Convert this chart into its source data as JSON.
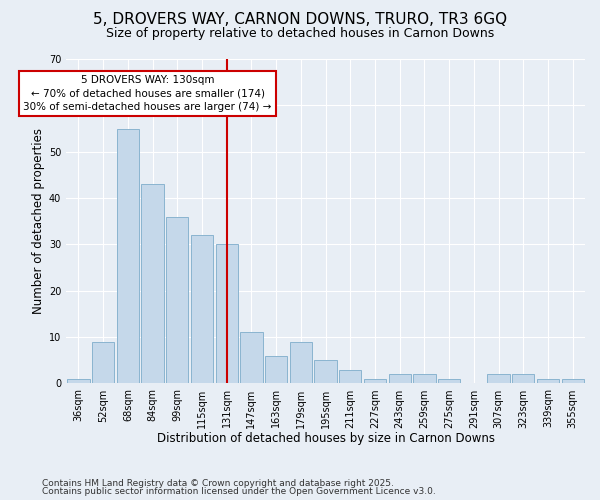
{
  "title1": "5, DROVERS WAY, CARNON DOWNS, TRURO, TR3 6GQ",
  "title2": "Size of property relative to detached houses in Carnon Downs",
  "xlabel": "Distribution of detached houses by size in Carnon Downs",
  "ylabel": "Number of detached properties",
  "categories": [
    "36sqm",
    "52sqm",
    "68sqm",
    "84sqm",
    "99sqm",
    "115sqm",
    "131sqm",
    "147sqm",
    "163sqm",
    "179sqm",
    "195sqm",
    "211sqm",
    "227sqm",
    "243sqm",
    "259sqm",
    "275sqm",
    "291sqm",
    "307sqm",
    "323sqm",
    "339sqm",
    "355sqm"
  ],
  "values": [
    1,
    9,
    55,
    43,
    36,
    32,
    30,
    11,
    6,
    9,
    5,
    3,
    1,
    2,
    2,
    1,
    0,
    2,
    2,
    1,
    1
  ],
  "bar_color": "#c5d8ea",
  "bar_edge_color": "#8ab4d0",
  "vline_index": 6,
  "vline_color": "#cc0000",
  "annotation_line1": "5 DROVERS WAY: 130sqm",
  "annotation_line2": "← 70% of detached houses are smaller (174)",
  "annotation_line3": "30% of semi-detached houses are larger (74) →",
  "annotation_box_color": "#ffffff",
  "annotation_box_edge": "#cc0000",
  "ylim": [
    0,
    70
  ],
  "yticks": [
    0,
    10,
    20,
    30,
    40,
    50,
    60,
    70
  ],
  "bg_color": "#e8eef5",
  "footer1": "Contains HM Land Registry data © Crown copyright and database right 2025.",
  "footer2": "Contains public sector information licensed under the Open Government Licence v3.0.",
  "title1_fontsize": 11,
  "title2_fontsize": 9,
  "axis_label_fontsize": 8.5,
  "tick_fontsize": 7,
  "annotation_fontsize": 7.5,
  "footer_fontsize": 6.5
}
